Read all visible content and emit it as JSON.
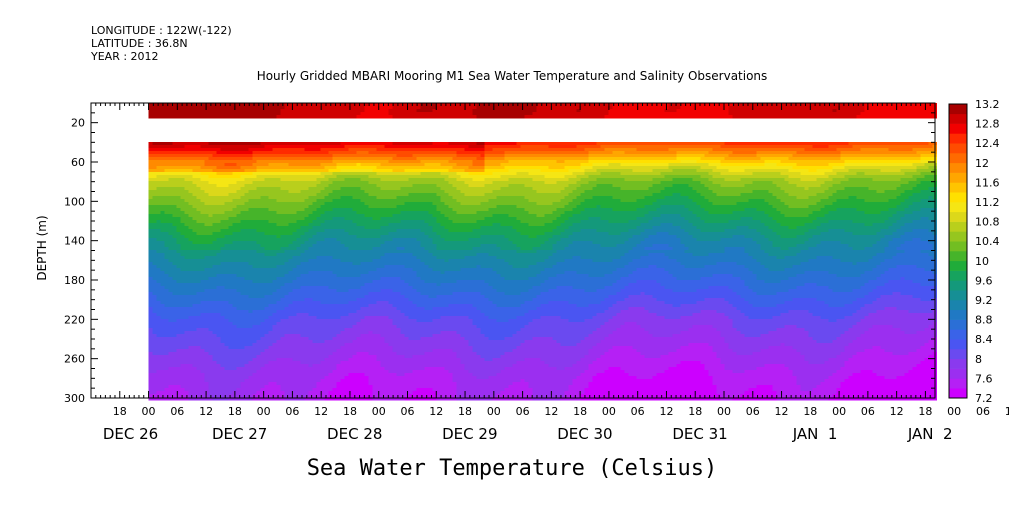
{
  "header": {
    "longitude": "LONGITUDE : 122W(-122)",
    "latitude": "LATITUDE : 36.8N",
    "year": "YEAR : 2012"
  },
  "chart_data": {
    "type": "heatmap",
    "title": "Hourly Gridded MBARI Mooring M1 Sea Water Temperature and Salinity Observations",
    "subtitle": "Sea Water Temperature (Celsius)",
    "ylabel": "DEPTH (m)",
    "ylim": [
      300,
      0
    ],
    "y_reversed": true,
    "y_ticks": [
      20,
      60,
      100,
      140,
      180,
      220,
      260,
      300
    ],
    "x_range": [
      "2012-12-26 12:00",
      "2013-01-02 20:00"
    ],
    "data_start": "2012-12-27 00:00",
    "hour_ticks": [
      "18",
      "00",
      "06",
      "12",
      "18",
      "00",
      "06",
      "12",
      "18",
      "00",
      "06",
      "12",
      "18",
      "00",
      "06",
      "12",
      "18",
      "00",
      "06",
      "12",
      "18",
      "00",
      "06",
      "12",
      "18",
      "00",
      "06",
      "12",
      "18",
      "00",
      "06",
      "12",
      "18"
    ],
    "day_labels": [
      "DEC 26",
      "DEC 27",
      "DEC 28",
      "DEC 29",
      "DEC 30",
      "DEC 31",
      "JAN  1",
      "JAN  2"
    ],
    "colorbar": {
      "levels": [
        7.2,
        7.4,
        7.6,
        7.8,
        8.0,
        8.2,
        8.4,
        8.6,
        8.8,
        9.0,
        9.2,
        9.4,
        9.6,
        9.8,
        10.0,
        10.2,
        10.4,
        10.6,
        10.8,
        11.0,
        11.2,
        11.4,
        11.6,
        11.8,
        12.0,
        12.2,
        12.4,
        12.6,
        12.8,
        13.0,
        13.2
      ],
      "labels": [
        "13.2",
        "12.8",
        "12.4",
        "12",
        "11.6",
        "11.2",
        "10.8",
        "10.4",
        "10",
        "9.6",
        "9.2",
        "8.8",
        "8.4",
        "8",
        "7.6",
        "7.2"
      ]
    },
    "depth_profile": {
      "depths": [
        10,
        40,
        50,
        60,
        70,
        80,
        100,
        120,
        140,
        160,
        180,
        200,
        220,
        240,
        260,
        280,
        300
      ],
      "temperature": [
        12.9,
        12.5,
        12.0,
        11.4,
        10.9,
        10.5,
        10.1,
        9.7,
        9.3,
        9.0,
        8.7,
        8.4,
        8.1,
        7.9,
        7.7,
        7.5,
        7.4
      ]
    },
    "missing_depth_band": [
      15,
      40
    ],
    "grid": false,
    "legend": "right colorbar"
  }
}
